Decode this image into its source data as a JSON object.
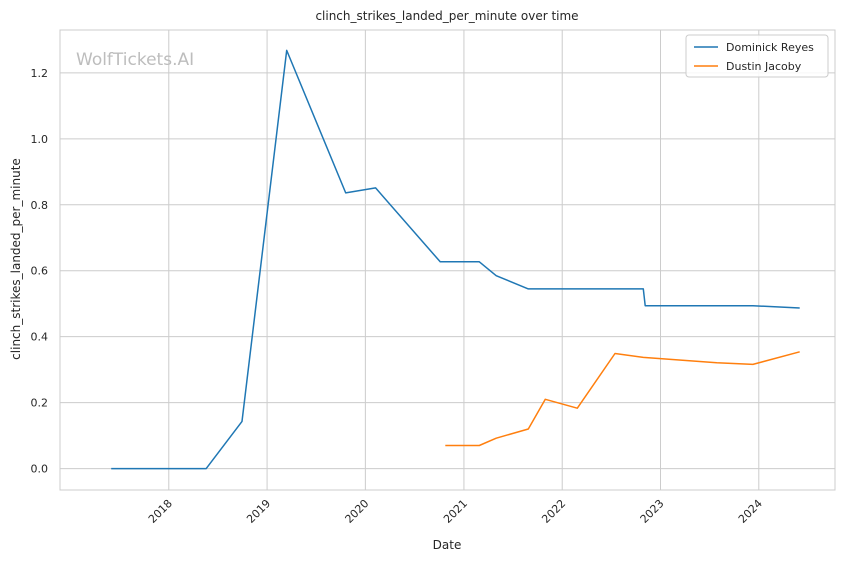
{
  "chart_data": {
    "type": "line",
    "title": "clinch_strikes_landed_per_minute over time",
    "xlabel": "Date",
    "ylabel": "clinch_strikes_landed_per_minute",
    "x_ticks": [
      "2018",
      "2019",
      "2020",
      "2021",
      "2022",
      "2023",
      "2024"
    ],
    "y_ticks": [
      "0.0",
      "0.2",
      "0.4",
      "0.6",
      "0.8",
      "1.0",
      "1.2"
    ],
    "xlim": [
      "2016-11-23",
      "2024-10-10"
    ],
    "ylim": [
      -0.065,
      1.33
    ],
    "grid": true,
    "legend_position": "top-right",
    "watermark": "WolfTickets.AI",
    "series": [
      {
        "name": "Dominick Reyes",
        "color": "#1f77b4",
        "points": [
          [
            "2017-06-01",
            0.0
          ],
          [
            "2018-05-20",
            0.0
          ],
          [
            "2018-09-30",
            0.143
          ],
          [
            "2019-03-15",
            1.268
          ],
          [
            "2019-10-20",
            0.836
          ],
          [
            "2020-02-08",
            0.851
          ],
          [
            "2020-10-05",
            0.627
          ],
          [
            "2021-02-27",
            0.627
          ],
          [
            "2021-05-01",
            0.585
          ],
          [
            "2021-08-28",
            0.545
          ],
          [
            "2022-10-29",
            0.545
          ],
          [
            "2022-11-05",
            0.494
          ],
          [
            "2023-12-10",
            0.494
          ],
          [
            "2024-06-01",
            0.487
          ]
        ]
      },
      {
        "name": "Dustin Jacoby",
        "color": "#ff7f0e",
        "points": [
          [
            "2020-10-24",
            0.07
          ],
          [
            "2021-02-27",
            0.07
          ],
          [
            "2021-05-01",
            0.092
          ],
          [
            "2021-08-28",
            0.12
          ],
          [
            "2021-10-30",
            0.21
          ],
          [
            "2022-02-26",
            0.183
          ],
          [
            "2022-07-16",
            0.349
          ],
          [
            "2022-10-29",
            0.337
          ],
          [
            "2023-07-29",
            0.321
          ],
          [
            "2023-12-10",
            0.316
          ],
          [
            "2024-06-01",
            0.354
          ]
        ]
      }
    ]
  }
}
